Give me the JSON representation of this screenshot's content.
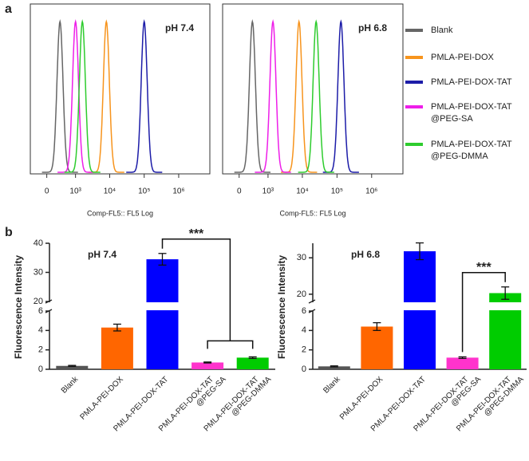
{
  "panel_labels": [
    "a",
    "b"
  ],
  "chart_data": [
    {
      "type": "flow-histogram",
      "title": "pH 7.4",
      "xlabel": "Comp-FL5:: FL5 Log",
      "xscale": "asinh",
      "xlim": [
        -400,
        8000000
      ],
      "xticks": [
        0,
        {
          "value": 1000,
          "label": "10³"
        },
        {
          "value": 10000,
          "label": "10⁴"
        },
        {
          "value": 100000,
          "label": "10⁵"
        },
        {
          "value": 1000000,
          "label": "10⁶"
        }
      ],
      "legend": "right",
      "series": [
        {
          "name": "Blank",
          "color": "#666666",
          "peak": 300
        },
        {
          "name": "PMLA-PEI-DOX",
          "color": "#f7941d",
          "peak": 8000
        },
        {
          "name": "PMLA-PEI-DOX-TAT",
          "color": "#1c1ca8",
          "peak": 100000
        },
        {
          "name": [
            "PMLA-PEI-DOX-TAT",
            "@PEG-SA"
          ],
          "color": "#ee1ee9",
          "peak": 1000
        },
        {
          "name": [
            "PMLA-PEI-DOX-TAT",
            "@PEG-DMMA"
          ],
          "color": "#2ecc2e",
          "peak": 1600
        }
      ]
    },
    {
      "type": "flow-histogram",
      "title": "pH 6.8",
      "xlabel": "Comp-FL5:: FL5 Log",
      "xscale": "asinh",
      "xlim": [
        -400,
        8000000
      ],
      "xticks": [
        0,
        {
          "value": 1000,
          "label": "10³"
        },
        {
          "value": 10000,
          "label": "10⁴"
        },
        {
          "value": 100000,
          "label": "10⁵"
        },
        {
          "value": 1000000,
          "label": "10⁶"
        }
      ],
      "series": [
        {
          "peak": 300
        },
        {
          "peak": 8000
        },
        {
          "peak": 130000
        },
        {
          "peak": 1400
        },
        {
          "peak": 25000
        }
      ]
    },
    {
      "type": "bar",
      "title": "pH 7.4",
      "ylabel": "Fluorescence Intensity",
      "categories": [
        "Blank",
        "PMLA-PEI-DOX",
        "PMLA-PEI-DOX-TAT",
        [
          "PMLA-PEI-DOX-TAT",
          "@PEG-SA"
        ],
        [
          "PMLA-PEI-DOX-TAT",
          "@PEG-DMMA"
        ]
      ],
      "values": [
        0.35,
        4.3,
        34.5,
        0.7,
        1.2
      ],
      "errors": [
        0.05,
        0.35,
        2,
        0.05,
        0.08
      ],
      "colors": [
        "#555555",
        "#ff6600",
        "#0000ff",
        "#ff33cc",
        "#00cc00"
      ],
      "ylim": [
        0,
        40
      ],
      "ybreak": [
        6,
        20
      ],
      "yticks": [
        0,
        2,
        4,
        6,
        20,
        30,
        40
      ],
      "significance": {
        "from": 2,
        "to": [
          3,
          4
        ],
        "label": "***"
      }
    },
    {
      "type": "bar",
      "title": "pH 6.8",
      "ylabel": "Fluorescence Intensity",
      "categories": [
        "Blank",
        "PMLA-PEI-DOX",
        "PMLA-PEI-DOX-TAT",
        [
          "PMLA-PEI-DOX-TAT",
          "@PEG-SA"
        ],
        [
          "PMLA-PEI-DOX-TAT",
          "@PEG-DMMA"
        ]
      ],
      "values": [
        0.3,
        4.4,
        31.8,
        1.2,
        20.3
      ],
      "errors": [
        0.05,
        0.4,
        2.3,
        0.08,
        1.7
      ],
      "colors": [
        "#555555",
        "#ff6600",
        "#0000ff",
        "#ff33cc",
        "#00cc00"
      ],
      "ylim": [
        0,
        34
      ],
      "ybreak": [
        6,
        18
      ],
      "yticks": [
        0,
        2,
        4,
        6,
        20,
        30
      ],
      "significance": {
        "from": 3,
        "to": [
          4
        ],
        "label": "***"
      }
    }
  ]
}
